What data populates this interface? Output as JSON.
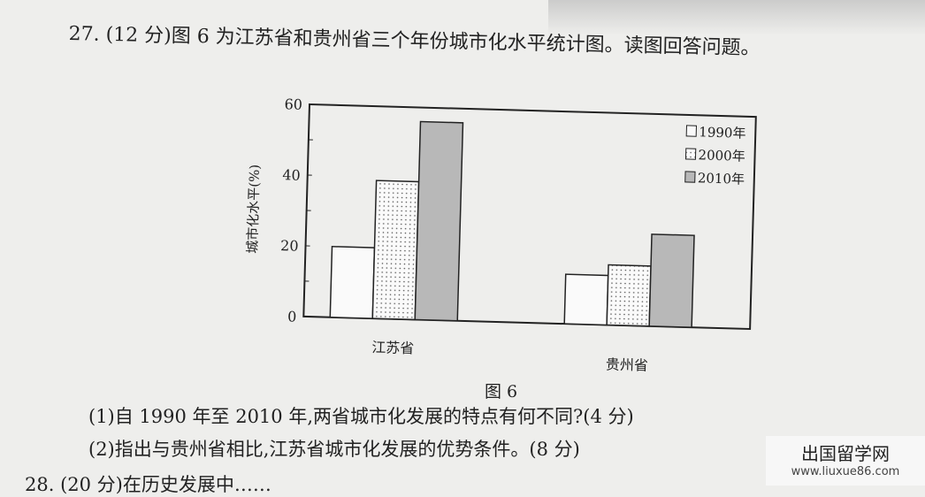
{
  "question": {
    "title": "27. (12 分)图 6 为江苏省和贵州省三个年份城市化水平统计图。读图回答问题。",
    "sub1": "(1)自 1990 年至 2010 年,两省城市化发展的特点有何不同?(4 分)",
    "sub2": "(2)指出与贵州省相比,江苏省城市化发展的优势条件。(8 分)",
    "next": "28. (20 分)在历史发展中……"
  },
  "chart_data": {
    "type": "bar",
    "title": "",
    "caption": "图 6",
    "ylabel": "城市化水平(%)",
    "xlabel": "",
    "ylim": [
      0,
      60
    ],
    "yticks": [
      "0",
      "20",
      "40",
      "60"
    ],
    "categories": [
      "江苏省",
      "贵州省"
    ],
    "legend_position": "top-right",
    "series": [
      {
        "name": "1990年",
        "values": [
          20,
          14
        ],
        "pattern": "blank"
      },
      {
        "name": "2000年",
        "values": [
          39,
          17
        ],
        "pattern": "dots"
      },
      {
        "name": "2010年",
        "values": [
          56,
          26
        ],
        "pattern": "gray"
      }
    ]
  },
  "watermark": {
    "name": "出国留学网",
    "url": "www.liuxue86.com"
  }
}
